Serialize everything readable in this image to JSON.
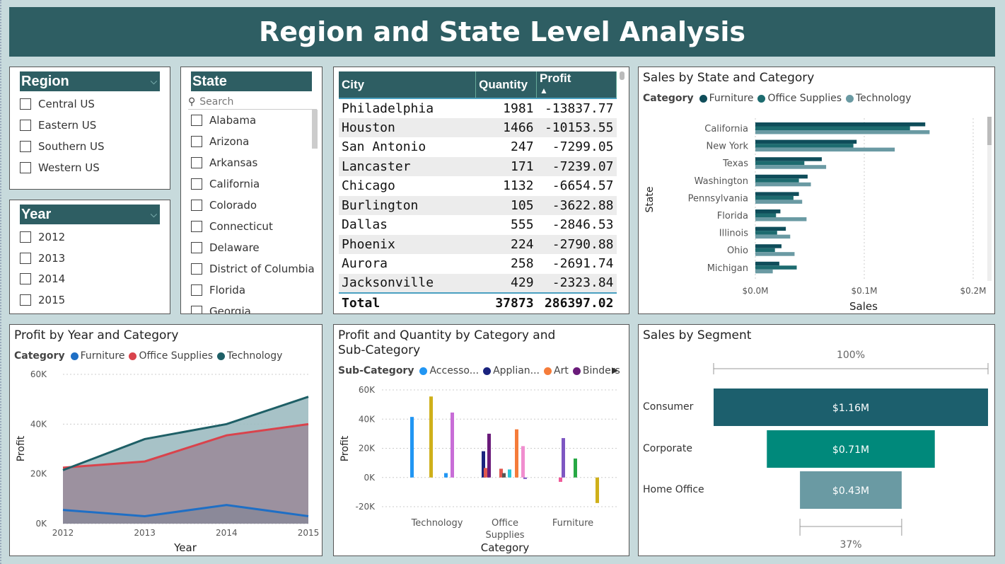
{
  "banner_title": "Region and State Level Analysis",
  "region_slicer": {
    "title": "Region",
    "options": [
      "Central US",
      "Eastern US",
      "Southern US",
      "Western US"
    ]
  },
  "year_slicer": {
    "title": "Year",
    "options": [
      "2012",
      "2013",
      "2014",
      "2015"
    ]
  },
  "state_slicer": {
    "title": "State",
    "search_placeholder": "Search",
    "options": [
      "Alabama",
      "Arizona",
      "Arkansas",
      "California",
      "Colorado",
      "Connecticut",
      "Delaware",
      "District of Columbia",
      "Florida",
      "Georgia"
    ]
  },
  "city_table": {
    "columns": [
      "City",
      "Quantity",
      "Profit"
    ],
    "rows": [
      [
        "Philadelphia",
        "1981",
        "-13837.77"
      ],
      [
        "Houston",
        "1466",
        "-10153.55"
      ],
      [
        "San Antonio",
        "247",
        "-7299.05"
      ],
      [
        "Lancaster",
        "171",
        "-7239.07"
      ],
      [
        "Chicago",
        "1132",
        "-6654.57"
      ],
      [
        "Burlington",
        "105",
        "-3622.88"
      ],
      [
        "Dallas",
        "555",
        "-2846.53"
      ],
      [
        "Phoenix",
        "224",
        "-2790.88"
      ],
      [
        "Aurora",
        "258",
        "-2691.74"
      ],
      [
        "Jacksonville",
        "429",
        "-2323.84"
      ]
    ],
    "total": [
      "Total",
      "37873",
      "286397.02"
    ],
    "sort_indicator": "▲"
  },
  "colors": {
    "banner": "#2e5e63",
    "furniture": "#0f4d5a",
    "office_supplies": "#1d6b6f",
    "technology": "#6a9aa3"
  },
  "chart_data": [
    {
      "id": "sales_state_category",
      "type": "bar",
      "title": "Sales by State and Category",
      "legend_title": "Category",
      "xlabel": "Sales",
      "ylabel": "State",
      "xticks": [
        "$0.0M",
        "$0.1M",
        "$0.2M"
      ],
      "xlim": [
        0,
        0.2
      ],
      "categories": [
        "California",
        "New York",
        "Texas",
        "Washington",
        "Pennsylvania",
        "Florida",
        "Illinois",
        "Ohio",
        "Michigan"
      ],
      "series": [
        {
          "name": "Furniture",
          "color": "#0f4d5a",
          "values": [
            0.156,
            0.093,
            0.061,
            0.048,
            0.04,
            0.023,
            0.028,
            0.024,
            0.022
          ]
        },
        {
          "name": "Office Supplies",
          "color": "#1d6b6f",
          "values": [
            0.142,
            0.09,
            0.045,
            0.04,
            0.035,
            0.019,
            0.02,
            0.018,
            0.038
          ]
        },
        {
          "name": "Technology",
          "color": "#6a9aa3",
          "values": [
            0.16,
            0.128,
            0.065,
            0.051,
            0.043,
            0.047,
            0.032,
            0.036,
            0.016
          ]
        }
      ]
    },
    {
      "id": "profit_year_category",
      "type": "area",
      "title": "Profit by Year and Category",
      "legend_title": "Category",
      "xlabel": "Year",
      "ylabel": "Profit",
      "x": [
        "2012",
        "2013",
        "2014",
        "2015"
      ],
      "yticks": [
        "0K",
        "20K",
        "40K",
        "60K"
      ],
      "ylim": [
        0,
        60000
      ],
      "series": [
        {
          "name": "Furniture",
          "color": "#1f6fc5",
          "values": [
            5500,
            3000,
            7500,
            3000
          ]
        },
        {
          "name": "Office Supplies",
          "color": "#d9434c",
          "values": [
            22500,
            25000,
            35500,
            40000
          ]
        },
        {
          "name": "Technology",
          "color": "#1e5f66",
          "values": [
            21500,
            34000,
            40000,
            51000
          ]
        }
      ]
    },
    {
      "id": "profit_qty_subcategory",
      "type": "bar",
      "title": "Profit and Quantity by Category and Sub-Category",
      "legend_title": "Sub-Category",
      "legend": [
        "Accesso...",
        "Applian...",
        "Art",
        "Binders"
      ],
      "legend_colors": [
        "#2196f3",
        "#1a237e",
        "#f57c3a",
        "#6a1b7a"
      ],
      "xlabel": "Category",
      "ylabel": "Profit",
      "categories": [
        "Technology",
        "Office Supplies",
        "Furniture"
      ],
      "yticks": [
        "-20K",
        "0K",
        "20K",
        "40K",
        "60K"
      ],
      "ylim": [
        -20000,
        60000
      ],
      "bars": [
        {
          "group": "Technology",
          "color": "#2196f3",
          "value": 41500
        },
        {
          "group": "Technology",
          "color": "#cfb01a",
          "value": 55500
        },
        {
          "group": "Technology",
          "color": "#2196f3",
          "value": 3000
        },
        {
          "group": "Technology",
          "color": "#c86dd7",
          "value": 44500
        },
        {
          "group": "Office Supplies",
          "color": "#1a237e",
          "value": 18000
        },
        {
          "group": "Office Supplies",
          "color": "#e0584f",
          "value": 6500
        },
        {
          "group": "Office Supplies",
          "color": "#6a1b7a",
          "value": 30000
        },
        {
          "group": "Office Supplies",
          "color": "#e0584f",
          "value": 6000
        },
        {
          "group": "Office Supplies",
          "color": "#555555",
          "value": 3000
        },
        {
          "group": "Office Supplies",
          "color": "#29c6d6",
          "value": 5500
        },
        {
          "group": "Office Supplies",
          "color": "#f57c3a",
          "value": 33000
        },
        {
          "group": "Office Supplies",
          "color": "#f08ecf",
          "value": 21500
        },
        {
          "group": "Office Supplies",
          "color": "#7e57c2",
          "value": -1000
        },
        {
          "group": "Furniture",
          "color": "#f05a9a",
          "value": -3000
        },
        {
          "group": "Furniture",
          "color": "#7e57c2",
          "value": 27000
        },
        {
          "group": "Furniture",
          "color": "#27a844",
          "value": 13000
        },
        {
          "group": "Furniture",
          "color": "#cfb01a",
          "value": -17500
        }
      ]
    },
    {
      "id": "sales_segment",
      "type": "funnel",
      "title": "Sales by Segment",
      "top_label": "100%",
      "bottom_label": "37%",
      "categories": [
        "Consumer",
        "Corporate",
        "Home Office"
      ],
      "values": [
        1.16,
        0.71,
        0.43
      ],
      "labels": [
        "$1.16M",
        "$0.71M",
        "$0.43M"
      ],
      "colors": [
        "#1c5f6d",
        "#00897b",
        "#6a9aa3"
      ]
    }
  ]
}
